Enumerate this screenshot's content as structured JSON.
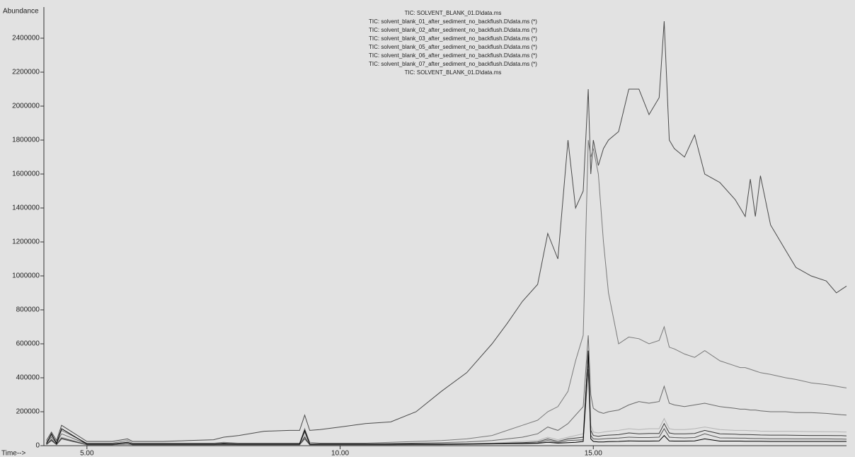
{
  "chart_data": {
    "type": "line",
    "title": "TIC: SOLVENT_BLANK_01.D\\data.ms",
    "y_label": "Abundance",
    "x_label": "Time-->",
    "xlim": [
      4.15,
      20
    ],
    "xticks": [
      {
        "value": 5,
        "label": "5.00"
      },
      {
        "value": 10,
        "label": "10.00"
      },
      {
        "value": 15,
        "label": "15.00"
      }
    ],
    "ylim": [
      0,
      2575000
    ],
    "yticks": [
      0,
      200000,
      400000,
      600000,
      800000,
      1000000,
      1200000,
      1400000,
      1600000,
      1800000,
      2000000,
      2200000,
      2400000
    ],
    "grid": false,
    "legend": "top",
    "x": [
      4.2,
      4.3,
      4.4,
      4.5,
      5.0,
      5.5,
      5.8,
      5.9,
      6.0,
      6.5,
      7.0,
      7.5,
      7.7,
      8.0,
      8.5,
      9.0,
      9.2,
      9.3,
      9.4,
      9.6,
      10.0,
      10.5,
      11.0,
      11.5,
      12.0,
      12.5,
      13.0,
      13.3,
      13.6,
      13.9,
      14.1,
      14.3,
      14.5,
      14.65,
      14.8,
      14.9,
      14.95,
      15.0,
      15.1,
      15.2,
      15.3,
      15.5,
      15.7,
      15.9,
      16.1,
      16.3,
      16.4,
      16.5,
      16.6,
      16.8,
      17.0,
      17.2,
      17.5,
      17.8,
      17.9,
      18.0,
      18.1,
      18.2,
      18.3,
      18.5,
      18.8,
      19.0,
      19.3,
      19.6,
      19.8,
      19.9,
      20.0
    ],
    "series": [
      {
        "name": "TIC: solvent_blank_01_after_sediment_no_backflush.D\\data.ms (*)",
        "color": "#4a4a4a",
        "values": [
          30000,
          80000,
          30000,
          120000,
          25000,
          25000,
          40000,
          25000,
          25000,
          25000,
          30000,
          35000,
          50000,
          60000,
          85000,
          90000,
          90000,
          180000,
          90000,
          95000,
          110000,
          130000,
          140000,
          200000,
          320000,
          430000,
          600000,
          720000,
          850000,
          950000,
          1250000,
          1100000,
          1800000,
          1400000,
          1500000,
          2100000,
          1600000,
          1800000,
          1650000,
          1750000,
          1800000,
          1850000,
          2100000,
          2100000,
          1950000,
          2050000,
          2500000,
          1800000,
          1750000,
          1700000,
          1830000,
          1600000,
          1550000,
          1450000,
          1400000,
          1350000,
          1570000,
          1350000,
          1590000,
          1300000,
          1150000,
          1050000,
          1000000,
          970000,
          900000,
          920000,
          940000
        ]
      },
      {
        "name": "TIC: solvent_blank_02_after_sediment_no_backflush.D\\data.ms (*)",
        "color": "#7a7a7a",
        "values": [
          20000,
          60000,
          20000,
          90000,
          15000,
          15000,
          30000,
          15000,
          15000,
          15000,
          15000,
          15000,
          20000,
          15000,
          15000,
          15000,
          15000,
          100000,
          20000,
          15000,
          15000,
          15000,
          20000,
          25000,
          30000,
          40000,
          60000,
          90000,
          120000,
          150000,
          200000,
          230000,
          320000,
          500000,
          650000,
          1800000,
          1700000,
          1750000,
          1600000,
          1200000,
          900000,
          600000,
          640000,
          630000,
          600000,
          620000,
          700000,
          580000,
          570000,
          540000,
          520000,
          560000,
          500000,
          470000,
          460000,
          460000,
          450000,
          440000,
          430000,
          420000,
          400000,
          390000,
          370000,
          360000,
          350000,
          345000,
          340000
        ]
      },
      {
        "name": "TIC: solvent_blank_03_after_sediment_no_backflush.D\\data.ms (*)",
        "color": "#686868",
        "values": [
          15000,
          50000,
          15000,
          70000,
          10000,
          10000,
          20000,
          10000,
          10000,
          10000,
          10000,
          10000,
          15000,
          10000,
          10000,
          10000,
          10000,
          80000,
          10000,
          10000,
          10000,
          10000,
          12000,
          15000,
          18000,
          22000,
          30000,
          40000,
          50000,
          70000,
          110000,
          90000,
          130000,
          180000,
          230000,
          650000,
          300000,
          220000,
          200000,
          190000,
          200000,
          210000,
          240000,
          260000,
          250000,
          260000,
          350000,
          250000,
          240000,
          230000,
          240000,
          250000,
          230000,
          220000,
          215000,
          215000,
          210000,
          210000,
          205000,
          200000,
          200000,
          195000,
          195000,
          190000,
          185000,
          182000,
          180000
        ]
      },
      {
        "name": "TIC: solvent_blank_05_after_sediment_no_backflush.D\\data.ms (*)",
        "color": "#b4b4b4",
        "values": [
          10000,
          40000,
          10000,
          50000,
          8000,
          8000,
          15000,
          8000,
          8000,
          8000,
          8000,
          8000,
          10000,
          8000,
          8000,
          8000,
          8000,
          60000,
          8000,
          8000,
          8000,
          8000,
          8000,
          10000,
          10000,
          12000,
          15000,
          20000,
          25000,
          30000,
          50000,
          35000,
          50000,
          60000,
          70000,
          500000,
          120000,
          80000,
          75000,
          80000,
          85000,
          90000,
          100000,
          95000,
          100000,
          100000,
          160000,
          100000,
          95000,
          95000,
          100000,
          110000,
          95000,
          90000,
          90000,
          90000,
          88000,
          88000,
          86000,
          85000,
          85000,
          84000,
          83000,
          82000,
          82000,
          81000,
          80000
        ]
      },
      {
        "name": "TIC: solvent_blank_06_after_sediment_no_backflush.D\\data.ms (*)",
        "color": "#3a3a3a",
        "values": [
          8000,
          35000,
          8000,
          45000,
          6000,
          6000,
          12000,
          6000,
          6000,
          6000,
          6000,
          6000,
          8000,
          6000,
          6000,
          6000,
          6000,
          50000,
          6000,
          6000,
          6000,
          6000,
          6000,
          8000,
          8000,
          10000,
          12000,
          15000,
          18000,
          22000,
          40000,
          25000,
          40000,
          45000,
          50000,
          550000,
          90000,
          60000,
          55000,
          60000,
          62000,
          65000,
          75000,
          70000,
          72000,
          72000,
          130000,
          75000,
          70000,
          70000,
          72000,
          90000,
          70000,
          68000,
          66000,
          66000,
          65000,
          64000,
          63000,
          62000,
          62000,
          61000,
          60000,
          60000,
          59000,
          59000,
          58000
        ]
      },
      {
        "name": "TIC: solvent_blank_07_after_sediment_no_backflush.D\\data.ms (*)",
        "color": "#555555",
        "values": [
          6000,
          30000,
          6000,
          40000,
          5000,
          5000,
          10000,
          5000,
          5000,
          5000,
          5000,
          5000,
          6000,
          5000,
          5000,
          5000,
          5000,
          40000,
          5000,
          5000,
          5000,
          5000,
          5000,
          6000,
          6000,
          8000,
          10000,
          12000,
          14000,
          16000,
          30000,
          18000,
          30000,
          32000,
          35000,
          450000,
          60000,
          40000,
          38000,
          40000,
          42000,
          45000,
          50000,
          48000,
          48000,
          50000,
          100000,
          50000,
          48000,
          46000,
          48000,
          70000,
          46000,
          45000,
          44000,
          44000,
          43000,
          42000,
          42000,
          41000,
          41000,
          40000,
          40000,
          40000,
          39000,
          39000,
          38000
        ]
      },
      {
        "name": "TIC: SOLVENT_BLANK_01.D\\data.ms",
        "color": "#000000",
        "values": [
          12000,
          70000,
          12000,
          100000,
          10000,
          10000,
          20000,
          10000,
          10000,
          10000,
          10000,
          10000,
          12000,
          10000,
          10000,
          10000,
          10000,
          90000,
          10000,
          10000,
          10000,
          10000,
          10000,
          10000,
          10000,
          10000,
          12000,
          12000,
          12000,
          14000,
          20000,
          15000,
          18000,
          20000,
          25000,
          560000,
          40000,
          25000,
          22000,
          22000,
          24000,
          25000,
          28000,
          27000,
          27000,
          28000,
          60000,
          28000,
          27000,
          27000,
          28000,
          40000,
          27000,
          27000,
          27000,
          26000,
          26000,
          26000,
          26000,
          25000,
          25000,
          25000,
          25000,
          25000,
          25000,
          25000,
          25000
        ]
      }
    ]
  }
}
